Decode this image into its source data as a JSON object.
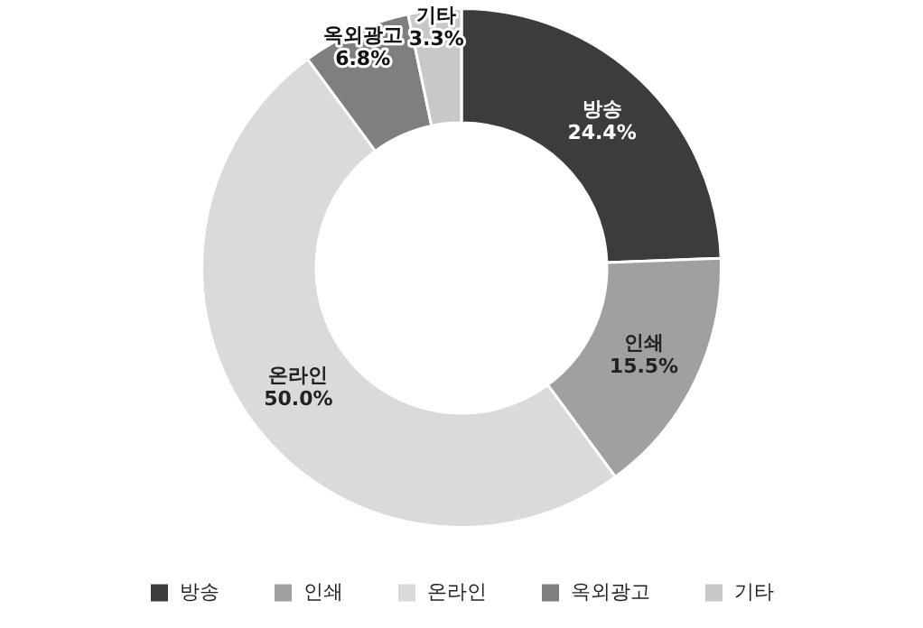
{
  "chart_data": {
    "type": "donut",
    "categories": [
      "방송",
      "인쇄",
      "온라인",
      "옥외광고",
      "기타"
    ],
    "values": [
      24.4,
      15.5,
      50.0,
      6.8,
      3.3
    ],
    "value_labels": [
      "24.4%",
      "15.5%",
      "50.0%",
      "6.8%",
      "3.3%"
    ],
    "colors": [
      "#3c3c3c",
      "#a0a0a0",
      "#dadada",
      "#7f7f7f",
      "#c8c8c8"
    ],
    "legend": "bottom"
  }
}
